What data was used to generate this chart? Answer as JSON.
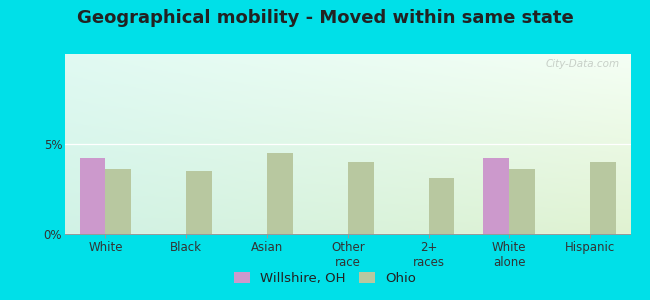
{
  "title": "Geographical mobility - Moved within same state",
  "categories": [
    "White",
    "Black",
    "Asian",
    "Other\nrace",
    "2+\nraces",
    "White\nalone",
    "Hispanic"
  ],
  "willshire_values": [
    4.2,
    0,
    0,
    0,
    0,
    4.2,
    0
  ],
  "ohio_values": [
    3.6,
    3.5,
    4.5,
    4.0,
    3.1,
    3.6,
    4.0
  ],
  "willshire_color": "#cc99cc",
  "ohio_color": "#b8c8a0",
  "ylim": [
    0,
    10
  ],
  "yticks": [
    0,
    5
  ],
  "ytick_labels": [
    "0%",
    "5%"
  ],
  "outer_bg": "#00e0e8",
  "legend_willshire": "Willshire, OH",
  "legend_ohio": "Ohio",
  "bar_width": 0.32,
  "title_fontsize": 13,
  "tick_fontsize": 8.5,
  "legend_fontsize": 9.5,
  "bg_left": "#c8f0f0",
  "bg_right": "#f0f8e8",
  "bg_top": "#f8fff8",
  "bg_bottom": "#d8eed8"
}
